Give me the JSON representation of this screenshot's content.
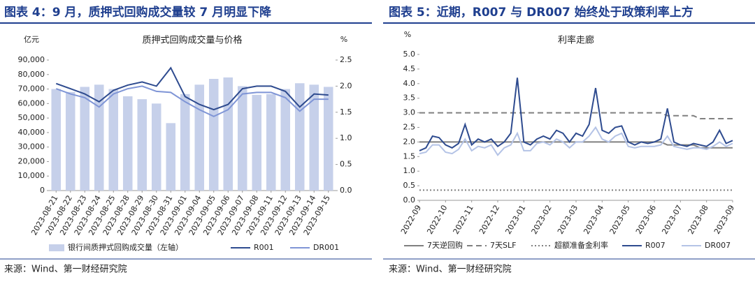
{
  "chart_data": [
    {
      "type": "bar",
      "caption": "图表 4：9 月，质押式回购成交量较 7 月明显下降",
      "title": "质押式回购成交量与价格",
      "y_unit": "亿元",
      "y2_unit": "%",
      "source": "来源：Wind、第一财经研究院",
      "categories": [
        "2023-08-21",
        "2023-08-22",
        "2023-08-23",
        "2023-08-24",
        "2023-08-25",
        "2023-08-28",
        "2023-08-29",
        "2023-08-30",
        "2023-08-31",
        "2023-09-01",
        "2023-09-04",
        "2023-09-05",
        "2023-09-06",
        "2023-09-07",
        "2023-09-08",
        "2023-09-11",
        "2023-09-12",
        "2023-09-13",
        "2023-09-14",
        "2023-09-15"
      ],
      "ylim": [
        0,
        90000
      ],
      "yticks": [
        0,
        {
          "value": 10000,
          "label": "10,000"
        },
        {
          "value": 20000,
          "label": "20,000"
        },
        {
          "value": 30000,
          "label": "30,000"
        },
        {
          "value": 40000,
          "label": "40,000"
        },
        {
          "value": 50000,
          "label": "50,000"
        },
        {
          "value": 60000,
          "label": "60,000"
        },
        {
          "value": 70000,
          "label": "70,000"
        },
        {
          "value": 80000,
          "label": "80,000"
        },
        {
          "value": 90000,
          "label": "90,000"
        }
      ],
      "y2lim": [
        0,
        2.5
      ],
      "y2ticks": [
        {
          "value": 0,
          "label": "0.0"
        },
        {
          "value": 0.5,
          "label": "0.5"
        },
        {
          "value": 1,
          "label": "1.0"
        },
        {
          "value": 1.5,
          "label": "1.5"
        },
        {
          "value": 2,
          "label": "2.0"
        },
        {
          "value": 2.5,
          "label": "2.5"
        }
      ],
      "series": [
        {
          "name": "银行间质押式回购成交量（左轴）",
          "type": "bar",
          "color": "#c6d0ea",
          "values": [
            70000,
            68000,
            71500,
            73000,
            70000,
            65000,
            63000,
            60000,
            46500,
            66500,
            73000,
            77000,
            78000,
            72000,
            66000,
            66500,
            70000,
            74000,
            73000,
            71500
          ]
        },
        {
          "name": "R001",
          "type": "line",
          "axis": "y2",
          "color": "#2e4b8f",
          "style": "solid",
          "values": [
            2.05,
            1.95,
            1.85,
            1.7,
            1.92,
            2.02,
            2.08,
            2.0,
            2.35,
            1.8,
            1.65,
            1.55,
            1.65,
            1.95,
            2.0,
            2.0,
            1.9,
            1.6,
            1.85,
            1.83
          ]
        },
        {
          "name": "DR001",
          "type": "line",
          "axis": "y2",
          "color": "#7f95d6",
          "style": "solid",
          "values": [
            1.95,
            1.85,
            1.78,
            1.6,
            1.85,
            1.95,
            2.0,
            1.9,
            1.88,
            1.7,
            1.55,
            1.42,
            1.55,
            1.85,
            1.88,
            1.88,
            1.78,
            1.52,
            1.75,
            1.75
          ]
        }
      ]
    },
    {
      "type": "line",
      "caption": "图表 5：近期，R007 与 DR007 始终处于政策利率上方",
      "title": "利率走廊",
      "y_unit": "%",
      "source": "来源：Wind、第一财经研究院",
      "categories": [
        "2022-09",
        null,
        null,
        null,
        "2022-10",
        null,
        null,
        null,
        "2022-11",
        null,
        null,
        null,
        "2022-12",
        null,
        null,
        null,
        "2023-01",
        null,
        null,
        null,
        "2023-02",
        null,
        null,
        null,
        "2023-03",
        null,
        null,
        null,
        "2023-04",
        null,
        null,
        null,
        "2023-05",
        null,
        null,
        null,
        "2023-06",
        null,
        null,
        null,
        "2023-07",
        null,
        null,
        null,
        "2023-08",
        null,
        null,
        null,
        "2023-09"
      ],
      "ylim": [
        0,
        5
      ],
      "yticks": [
        {
          "value": 0,
          "label": "0.0"
        },
        {
          "value": 0.5,
          "label": "0.5"
        },
        {
          "value": 1,
          "label": "1.0"
        },
        {
          "value": 1.5,
          "label": "1.5"
        },
        {
          "value": 2,
          "label": "2.0"
        },
        {
          "value": 2.5,
          "label": "2.5"
        },
        {
          "value": 3,
          "label": "3.0"
        },
        {
          "value": 3.5,
          "label": "3.5"
        },
        {
          "value": 4,
          "label": "4.0"
        },
        {
          "value": 4.5,
          "label": "4.5"
        },
        {
          "value": 5,
          "label": "5.0"
        }
      ],
      "series": [
        {
          "name": "7天逆回购",
          "color": "#808080",
          "style": "solid",
          "values": [
            2,
            2,
            2,
            2,
            2,
            2,
            2,
            2,
            2,
            2,
            2,
            2,
            2,
            2,
            2,
            2,
            2,
            2,
            2,
            2,
            2,
            2,
            2,
            2,
            2,
            2,
            2,
            2,
            2,
            2,
            2,
            2,
            2,
            2,
            2,
            2,
            2,
            2,
            1.9,
            1.9,
            1.9,
            1.9,
            1.9,
            1.8,
            1.8,
            1.8,
            1.8,
            1.8,
            1.8
          ]
        },
        {
          "name": "7天SLF",
          "color": "#808080",
          "style": "dashed",
          "values": [
            3,
            3,
            3,
            3,
            3,
            3,
            3,
            3,
            3,
            3,
            3,
            3,
            3,
            3,
            3,
            3,
            3,
            3,
            3,
            3,
            3,
            3,
            3,
            3,
            3,
            3,
            3,
            3,
            3,
            3,
            3,
            3,
            3,
            3,
            3,
            3,
            3,
            3,
            2.9,
            2.9,
            2.9,
            2.9,
            2.9,
            2.8,
            2.8,
            2.8,
            2.8,
            2.8,
            2.8
          ]
        },
        {
          "name": "超额准备金利率",
          "color": "#808080",
          "style": "dotted",
          "values": [
            0.35,
            0.35,
            0.35,
            0.35,
            0.35,
            0.35,
            0.35,
            0.35,
            0.35,
            0.35,
            0.35,
            0.35,
            0.35,
            0.35,
            0.35,
            0.35,
            0.35,
            0.35,
            0.35,
            0.35,
            0.35,
            0.35,
            0.35,
            0.35,
            0.35,
            0.35,
            0.35,
            0.35,
            0.35,
            0.35,
            0.35,
            0.35,
            0.35,
            0.35,
            0.35,
            0.35,
            0.35,
            0.35,
            0.35,
            0.35,
            0.35,
            0.35,
            0.35,
            0.35,
            0.35,
            0.35,
            0.35,
            0.35,
            0.35
          ]
        },
        {
          "name": "R007",
          "color": "#2e4b8f",
          "style": "solid",
          "values": [
            1.7,
            1.8,
            2.2,
            2.15,
            1.9,
            1.8,
            1.95,
            2.6,
            1.9,
            2.1,
            2.0,
            2.1,
            1.85,
            2.0,
            2.3,
            4.2,
            2.0,
            1.9,
            2.1,
            2.2,
            2.1,
            2.4,
            2.3,
            2.0,
            2.3,
            2.2,
            2.6,
            3.85,
            2.4,
            2.3,
            2.5,
            2.55,
            2.0,
            1.9,
            2.0,
            1.95,
            2.0,
            2.1,
            3.15,
            2.0,
            1.9,
            1.85,
            1.95,
            1.9,
            1.85,
            2.0,
            2.4,
            1.95,
            2.05
          ]
        },
        {
          "name": "DR007",
          "color": "#b4c3e6",
          "style": "solid",
          "values": [
            1.6,
            1.65,
            1.9,
            1.9,
            1.65,
            1.6,
            1.75,
            2.1,
            1.7,
            1.85,
            1.8,
            1.9,
            1.55,
            1.8,
            1.9,
            2.3,
            1.7,
            1.7,
            1.95,
            2.0,
            1.9,
            2.1,
            2.0,
            1.8,
            2.0,
            2.0,
            2.2,
            2.5,
            2.1,
            2.0,
            2.2,
            2.3,
            1.85,
            1.8,
            1.85,
            1.85,
            1.85,
            1.9,
            2.2,
            1.85,
            1.8,
            1.75,
            1.8,
            1.8,
            1.75,
            1.85,
            2.0,
            1.85,
            1.95
          ]
        }
      ]
    }
  ]
}
